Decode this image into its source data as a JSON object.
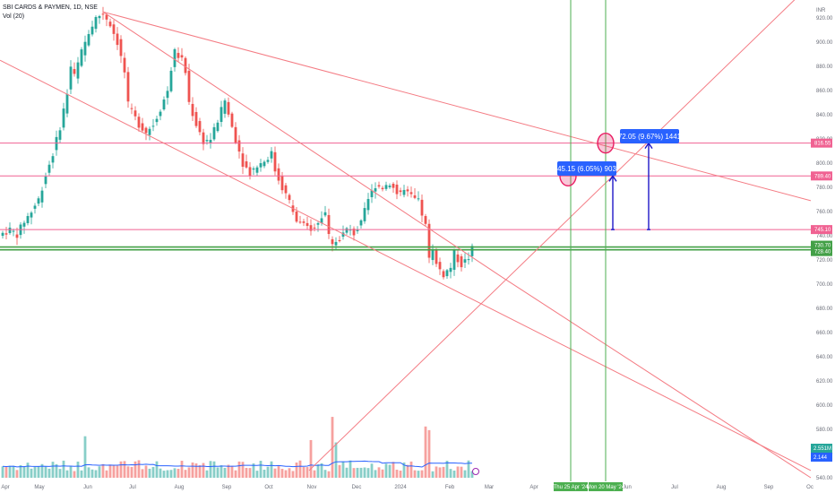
{
  "header": {
    "symbol": "SBI CARDS & PAYMEN, 1D, NSE",
    "volume_label": "Vol (20)",
    "currency": "INR"
  },
  "colors": {
    "up": "#26a69a",
    "down": "#ef5350",
    "trend": "#f47c84",
    "hline": "#f06292",
    "support": "#43a047",
    "vline": "#4caf50",
    "arrow": "#1e16c8",
    "box": "#2962ff",
    "vol_ma": "#2962ff",
    "circle": "#e91e63"
  },
  "chart_data": {
    "type": "candlestick",
    "title": "SBI CARDS & PAYMEN, 1D, NSE",
    "ylim": [
      540,
      930
    ],
    "y_ticks": [
      920,
      900,
      880,
      860,
      840,
      820,
      800,
      780,
      760,
      740,
      720,
      700,
      680,
      660,
      640,
      620,
      600,
      580,
      560,
      540
    ],
    "x_ticks": [
      "Apr",
      "May",
      "Jun",
      "Jul",
      "Aug",
      "Sep",
      "Oct",
      "Nov",
      "Dec",
      "2024",
      "Feb",
      "Mar",
      "Apr",
      "May",
      "Jun",
      "Jul",
      "Aug",
      "Sep",
      "Oc"
    ],
    "price_path": [
      [
        0,
        742
      ],
      [
        2,
        745
      ],
      [
        4,
        741
      ],
      [
        6,
        752
      ],
      [
        8,
        760
      ],
      [
        10,
        770
      ],
      [
        12,
        790
      ],
      [
        14,
        808
      ],
      [
        16,
        830
      ],
      [
        18,
        858
      ],
      [
        19,
        880
      ],
      [
        20,
        872
      ],
      [
        22,
        892
      ],
      [
        24,
        908
      ],
      [
        26,
        920
      ],
      [
        28,
        924
      ],
      [
        30,
        915
      ],
      [
        32,
        900
      ],
      [
        34,
        875
      ],
      [
        35,
        848
      ],
      [
        36,
        842
      ],
      [
        38,
        832
      ],
      [
        40,
        826
      ],
      [
        42,
        832
      ],
      [
        44,
        845
      ],
      [
        46,
        860
      ],
      [
        47,
        878
      ],
      [
        48,
        892
      ],
      [
        50,
        885
      ],
      [
        51,
        875
      ],
      [
        52,
        850
      ],
      [
        54,
        832
      ],
      [
        56,
        818
      ],
      [
        58,
        820
      ],
      [
        60,
        835
      ],
      [
        62,
        852
      ],
      [
        63,
        840
      ],
      [
        65,
        820
      ],
      [
        67,
        800
      ],
      [
        69,
        792
      ],
      [
        71,
        798
      ],
      [
        73,
        802
      ],
      [
        75,
        808
      ],
      [
        76,
        794
      ],
      [
        78,
        780
      ],
      [
        80,
        768
      ],
      [
        82,
        752
      ],
      [
        84,
        748
      ],
      [
        86,
        746
      ],
      [
        88,
        752
      ],
      [
        90,
        760
      ],
      [
        91,
        740
      ],
      [
        92,
        735
      ],
      [
        94,
        738
      ],
      [
        96,
        745
      ],
      [
        98,
        742
      ],
      [
        100,
        750
      ],
      [
        102,
        770
      ],
      [
        104,
        782
      ],
      [
        106,
        780
      ],
      [
        108,
        784
      ],
      [
        110,
        775
      ],
      [
        112,
        777
      ],
      [
        114,
        772
      ],
      [
        116,
        768
      ],
      [
        118,
        748
      ],
      [
        119,
        722
      ],
      [
        120,
        730
      ],
      [
        121,
        716
      ],
      [
        123,
        708
      ],
      [
        125,
        714
      ],
      [
        126,
        725
      ],
      [
        128,
        716
      ],
      [
        130,
        722
      ],
      [
        131,
        729
      ]
    ],
    "volume_ylim": [
      0,
      200
    ],
    "volume_base_value": 2.144,
    "volume_ma_value": 2.551,
    "price_lines": [
      {
        "price": 816.55,
        "label": "816.55",
        "color": "#f06292"
      },
      {
        "price": 789.4,
        "label": "789.40",
        "color": "#f06292"
      },
      {
        "price": 745.1,
        "label": "745.10",
        "color": "#f06292"
      },
      {
        "price": 730.7,
        "label": "730.70",
        "color": "#43a047"
      },
      {
        "price": 728.4,
        "label": "728.40",
        "color": "#43a047"
      }
    ],
    "volume_tags": [
      {
        "label": "2.551M",
        "color": "#26a69a"
      },
      {
        "label": "2.144",
        "color": "#2962ff"
      }
    ],
    "date_markers": [
      {
        "label": "Thu 25 Apr '24"
      },
      {
        "label": "Mon 20 May '24"
      }
    ],
    "measure_boxes": [
      {
        "label": "45.15 (6.05%) 903"
      },
      {
        "label": "72.05 (9.67%) 1441"
      }
    ]
  }
}
